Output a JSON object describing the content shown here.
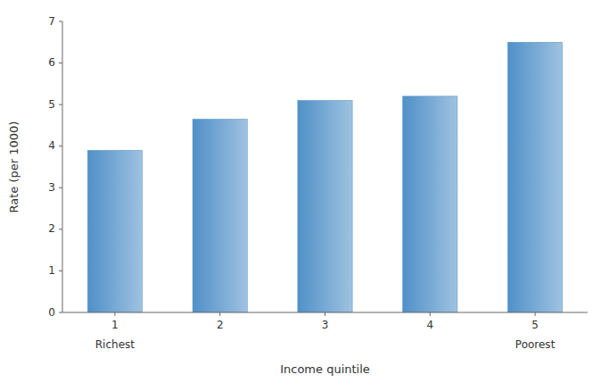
{
  "chart_data": {
    "type": "bar",
    "categories": [
      "1",
      "2",
      "3",
      "4",
      "5"
    ],
    "values": [
      3.9,
      4.65,
      5.1,
      5.2,
      6.5
    ],
    "color": "#5090c8",
    "xlabel": "Income quintile",
    "ylabel": "Rate (per 1000)",
    "annotations": [
      {
        "text": "Richest",
        "category": "1"
      },
      {
        "text": "Poorest",
        "category": "5"
      }
    ],
    "ylim": [
      0,
      7
    ],
    "yticks": [
      0,
      1,
      2,
      3,
      4,
      5,
      6,
      7
    ],
    "grid": false
  }
}
